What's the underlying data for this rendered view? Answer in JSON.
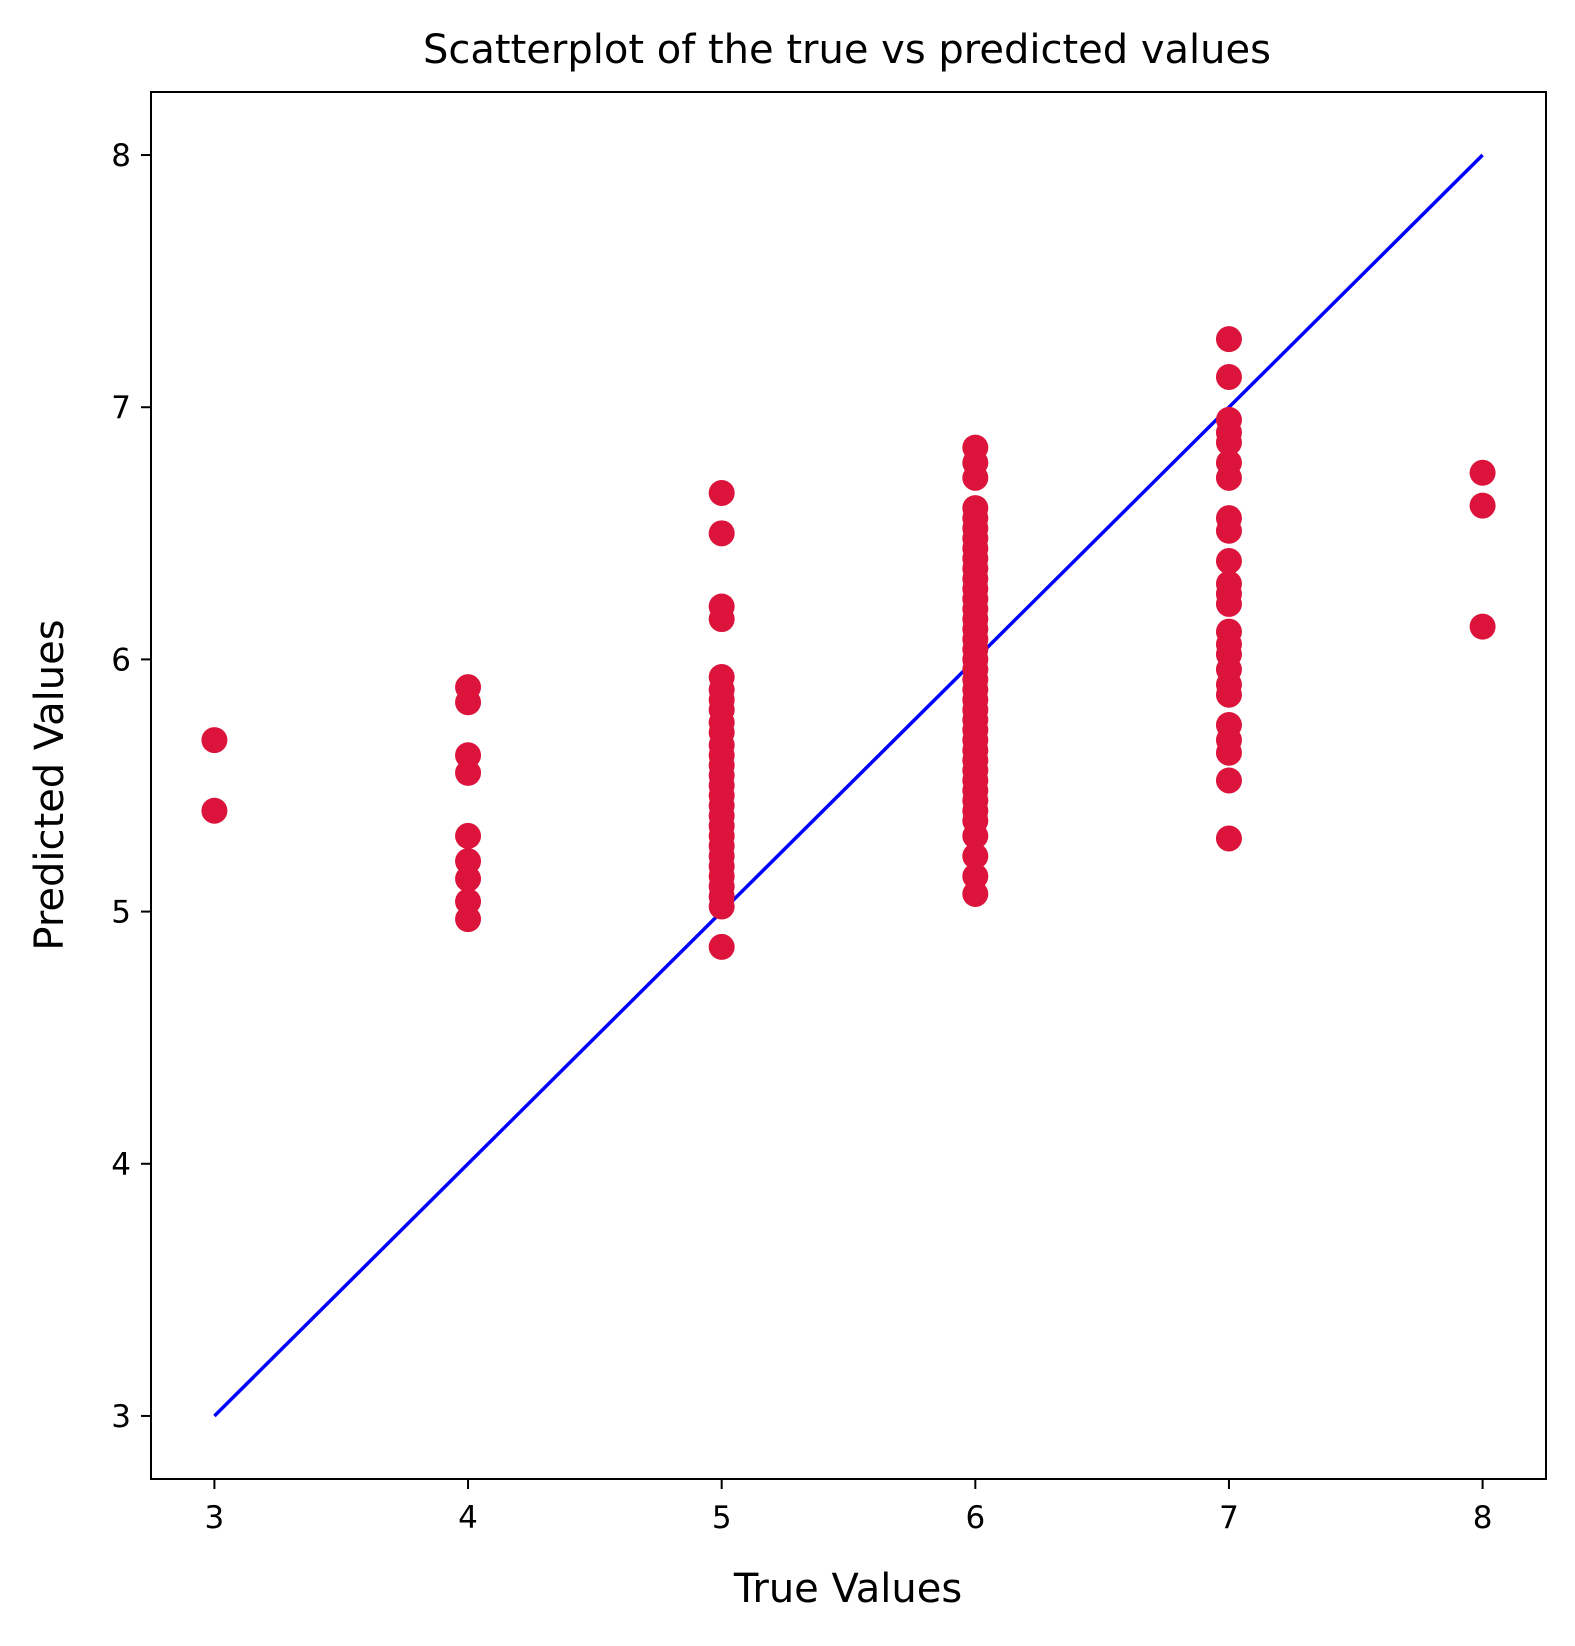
{
  "chart_data": {
    "type": "scatter",
    "title": "Scatterplot of the true vs predicted values",
    "xlabel": "True Values",
    "ylabel": "Predicted Values",
    "xlim": [
      2.75,
      8.25
    ],
    "ylim": [
      2.75,
      8.25
    ],
    "xticks": [
      3,
      4,
      5,
      6,
      7,
      8
    ],
    "yticks": [
      3,
      4,
      5,
      6,
      7,
      8
    ],
    "grid": false,
    "marker_color": "#dc143c",
    "line_color": "#0000ff",
    "reference_line": {
      "x": [
        3,
        8
      ],
      "y": [
        3,
        8
      ]
    },
    "points": [
      {
        "x": 3,
        "y": [
          5.68,
          5.4
        ]
      },
      {
        "x": 4,
        "y": [
          5.89,
          5.83,
          5.62,
          5.55,
          5.3,
          5.2,
          5.13,
          5.04,
          4.97
        ]
      },
      {
        "x": 5,
        "y": [
          6.66,
          6.5,
          6.21,
          6.16,
          5.93,
          5.88,
          5.84,
          5.8,
          5.75,
          5.71,
          5.66,
          5.62,
          5.58,
          5.54,
          5.5,
          5.46,
          5.42,
          5.38,
          5.34,
          5.3,
          5.26,
          5.22,
          5.18,
          5.14,
          5.1,
          5.06,
          5.02,
          4.86
        ]
      },
      {
        "x": 6,
        "y": [
          6.84,
          6.78,
          6.72,
          6.6,
          6.56,
          6.52,
          6.48,
          6.44,
          6.4,
          6.36,
          6.32,
          6.28,
          6.24,
          6.2,
          6.16,
          6.12,
          6.08,
          6.04,
          6.0,
          5.96,
          5.92,
          5.88,
          5.84,
          5.8,
          5.76,
          5.72,
          5.68,
          5.64,
          5.6,
          5.56,
          5.52,
          5.48,
          5.44,
          5.4,
          5.36,
          5.3,
          5.22,
          5.14,
          5.07
        ]
      },
      {
        "x": 7,
        "y": [
          7.27,
          7.12,
          6.95,
          6.9,
          6.86,
          6.78,
          6.72,
          6.56,
          6.51,
          6.39,
          6.3,
          6.26,
          6.22,
          6.11,
          6.06,
          6.02,
          5.96,
          5.9,
          5.86,
          5.74,
          5.68,
          5.63,
          5.52,
          5.29
        ]
      },
      {
        "x": 8,
        "y": [
          6.74,
          6.61,
          6.13
        ]
      }
    ]
  }
}
